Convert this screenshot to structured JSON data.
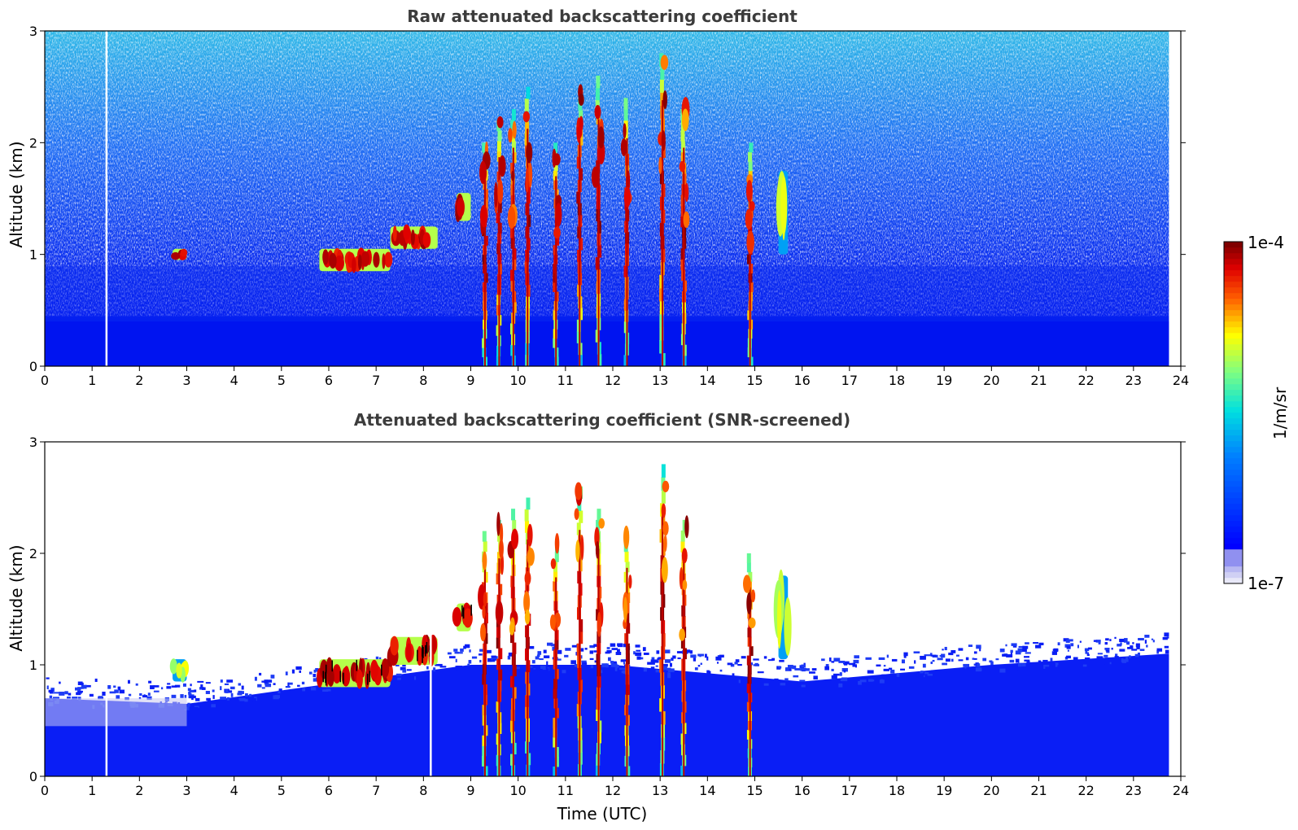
{
  "chart_data": [
    {
      "type": "heatmap",
      "title": "Raw attenuated backscattering coefficient",
      "xlabel": "",
      "ylabel": "Altitude (km)",
      "xlim": [
        0,
        24
      ],
      "ylim": [
        0,
        3
      ],
      "xticks": [
        "0",
        "1",
        "2",
        "3",
        "4",
        "5",
        "6",
        "7",
        "8",
        "9",
        "10",
        "11",
        "12",
        "13",
        "14",
        "15",
        "16",
        "17",
        "18",
        "19",
        "20",
        "21",
        "22",
        "23",
        "24"
      ],
      "yticks": [
        "0",
        "1",
        "2",
        "3"
      ],
      "data_end_hour": 23.75,
      "noise_background": "speckled blue/cyan increasing with altitude, strong dense blue below 0.4 km",
      "features": [
        {
          "kind": "cloud",
          "t_start": 2.7,
          "t_end": 3.0,
          "z_bottom": 0.95,
          "z_top": 1.05,
          "intensity": "high"
        },
        {
          "kind": "cloud_layer",
          "t_start": 5.8,
          "t_end": 7.3,
          "z_bottom": 0.85,
          "z_top": 1.05,
          "intensity": "high"
        },
        {
          "kind": "cloud_layer",
          "t_start": 7.3,
          "t_end": 8.3,
          "z_bottom": 1.05,
          "z_top": 1.25,
          "intensity": "high"
        },
        {
          "kind": "cloud",
          "t_start": 8.7,
          "t_end": 9.0,
          "z_bottom": 1.3,
          "z_top": 1.55,
          "intensity": "high"
        },
        {
          "kind": "precip_streak",
          "t": 9.3,
          "z_top": 2.0
        },
        {
          "kind": "precip_streak",
          "t": 9.6,
          "z_top": 2.2
        },
        {
          "kind": "precip_streak",
          "t": 9.9,
          "z_top": 2.3
        },
        {
          "kind": "precip_streak",
          "t": 10.2,
          "z_top": 2.5
        },
        {
          "kind": "precip_streak",
          "t": 10.8,
          "z_top": 2.0
        },
        {
          "kind": "precip_streak",
          "t": 11.3,
          "z_top": 2.5
        },
        {
          "kind": "precip_streak",
          "t": 11.7,
          "z_top": 2.6
        },
        {
          "kind": "precip_streak",
          "t": 12.3,
          "z_top": 2.4
        },
        {
          "kind": "precip_streak",
          "t": 13.05,
          "z_top": 2.8
        },
        {
          "kind": "precip_streak",
          "t": 13.5,
          "z_top": 2.3
        },
        {
          "kind": "precip_streak",
          "t": 14.9,
          "z_top": 2.0
        },
        {
          "kind": "cloud",
          "t_start": 15.5,
          "t_end": 15.7,
          "z_bottom": 1.0,
          "z_top": 1.75,
          "intensity": "medium"
        }
      ],
      "data_gap_hours": [
        1.3
      ],
      "colorbar": {
        "label": "1/m/sr",
        "min": "1e-7",
        "max": "1e-4",
        "scale": "log",
        "colormap": "jet"
      }
    },
    {
      "type": "heatmap",
      "title": "Attenuated backscattering coefficient (SNR-screened)",
      "xlabel": "Time (UTC)",
      "ylabel": "Altitude (km)",
      "xlim": [
        0,
        24
      ],
      "ylim": [
        0,
        3
      ],
      "xticks": [
        "0",
        "1",
        "2",
        "3",
        "4",
        "5",
        "6",
        "7",
        "8",
        "9",
        "10",
        "11",
        "12",
        "13",
        "14",
        "15",
        "16",
        "17",
        "18",
        "19",
        "20",
        "21",
        "22",
        "23",
        "24"
      ],
      "yticks": [
        "0",
        "1",
        "2",
        "3"
      ],
      "data_end_hour": 23.75,
      "boundary_layer": [
        {
          "t": 0,
          "z_top": 0.7
        },
        {
          "t": 3,
          "z_top": 0.65
        },
        {
          "t": 5.5,
          "z_top": 0.8
        },
        {
          "t": 9,
          "z_top": 1.0
        },
        {
          "t": 12,
          "z_top": 1.0
        },
        {
          "t": 16,
          "z_top": 0.85
        },
        {
          "t": 20,
          "z_top": 1.0
        },
        {
          "t": 23.75,
          "z_top": 1.1
        }
      ],
      "features": [
        {
          "kind": "cloud",
          "t_start": 2.7,
          "t_end": 3.0,
          "z_bottom": 0.85,
          "z_top": 1.05,
          "intensity": "medium"
        },
        {
          "kind": "cloud_layer",
          "t_start": 5.8,
          "t_end": 7.3,
          "z_bottom": 0.8,
          "z_top": 1.05,
          "intensity": "high"
        },
        {
          "kind": "cloud_layer",
          "t_start": 7.3,
          "t_end": 8.3,
          "z_bottom": 1.0,
          "z_top": 1.25,
          "intensity": "high"
        },
        {
          "kind": "cloud",
          "t_start": 8.7,
          "t_end": 9.0,
          "z_bottom": 1.3,
          "z_top": 1.55,
          "intensity": "high"
        },
        {
          "kind": "precip_streak",
          "t": 9.3,
          "z_top": 2.2
        },
        {
          "kind": "precip_streak",
          "t": 9.6,
          "z_top": 2.3
        },
        {
          "kind": "precip_streak",
          "t": 9.9,
          "z_top": 2.4
        },
        {
          "kind": "precip_streak",
          "t": 10.2,
          "z_top": 2.5
        },
        {
          "kind": "precip_streak",
          "t": 10.8,
          "z_top": 2.1
        },
        {
          "kind": "precip_streak",
          "t": 11.3,
          "z_top": 2.6
        },
        {
          "kind": "precip_streak",
          "t": 11.7,
          "z_top": 2.4
        },
        {
          "kind": "precip_streak",
          "t": 12.3,
          "z_top": 2.2
        },
        {
          "kind": "precip_streak",
          "t": 13.05,
          "z_top": 2.8
        },
        {
          "kind": "precip_streak",
          "t": 13.5,
          "z_top": 2.3
        },
        {
          "kind": "precip_streak",
          "t": 14.9,
          "z_top": 2.0
        },
        {
          "kind": "cloud",
          "t_start": 15.5,
          "t_end": 15.7,
          "z_bottom": 1.05,
          "z_top": 1.8,
          "intensity": "medium"
        }
      ],
      "data_gap_hours": [
        1.3,
        8.15
      ],
      "colorbar": {
        "label": "1/m/sr",
        "min": "1e-7",
        "max": "1e-4",
        "scale": "log",
        "colormap": "jet"
      }
    }
  ],
  "colorbar": {
    "label": "1/m/sr",
    "max_label": "1e-4",
    "min_label": "1e-7"
  }
}
